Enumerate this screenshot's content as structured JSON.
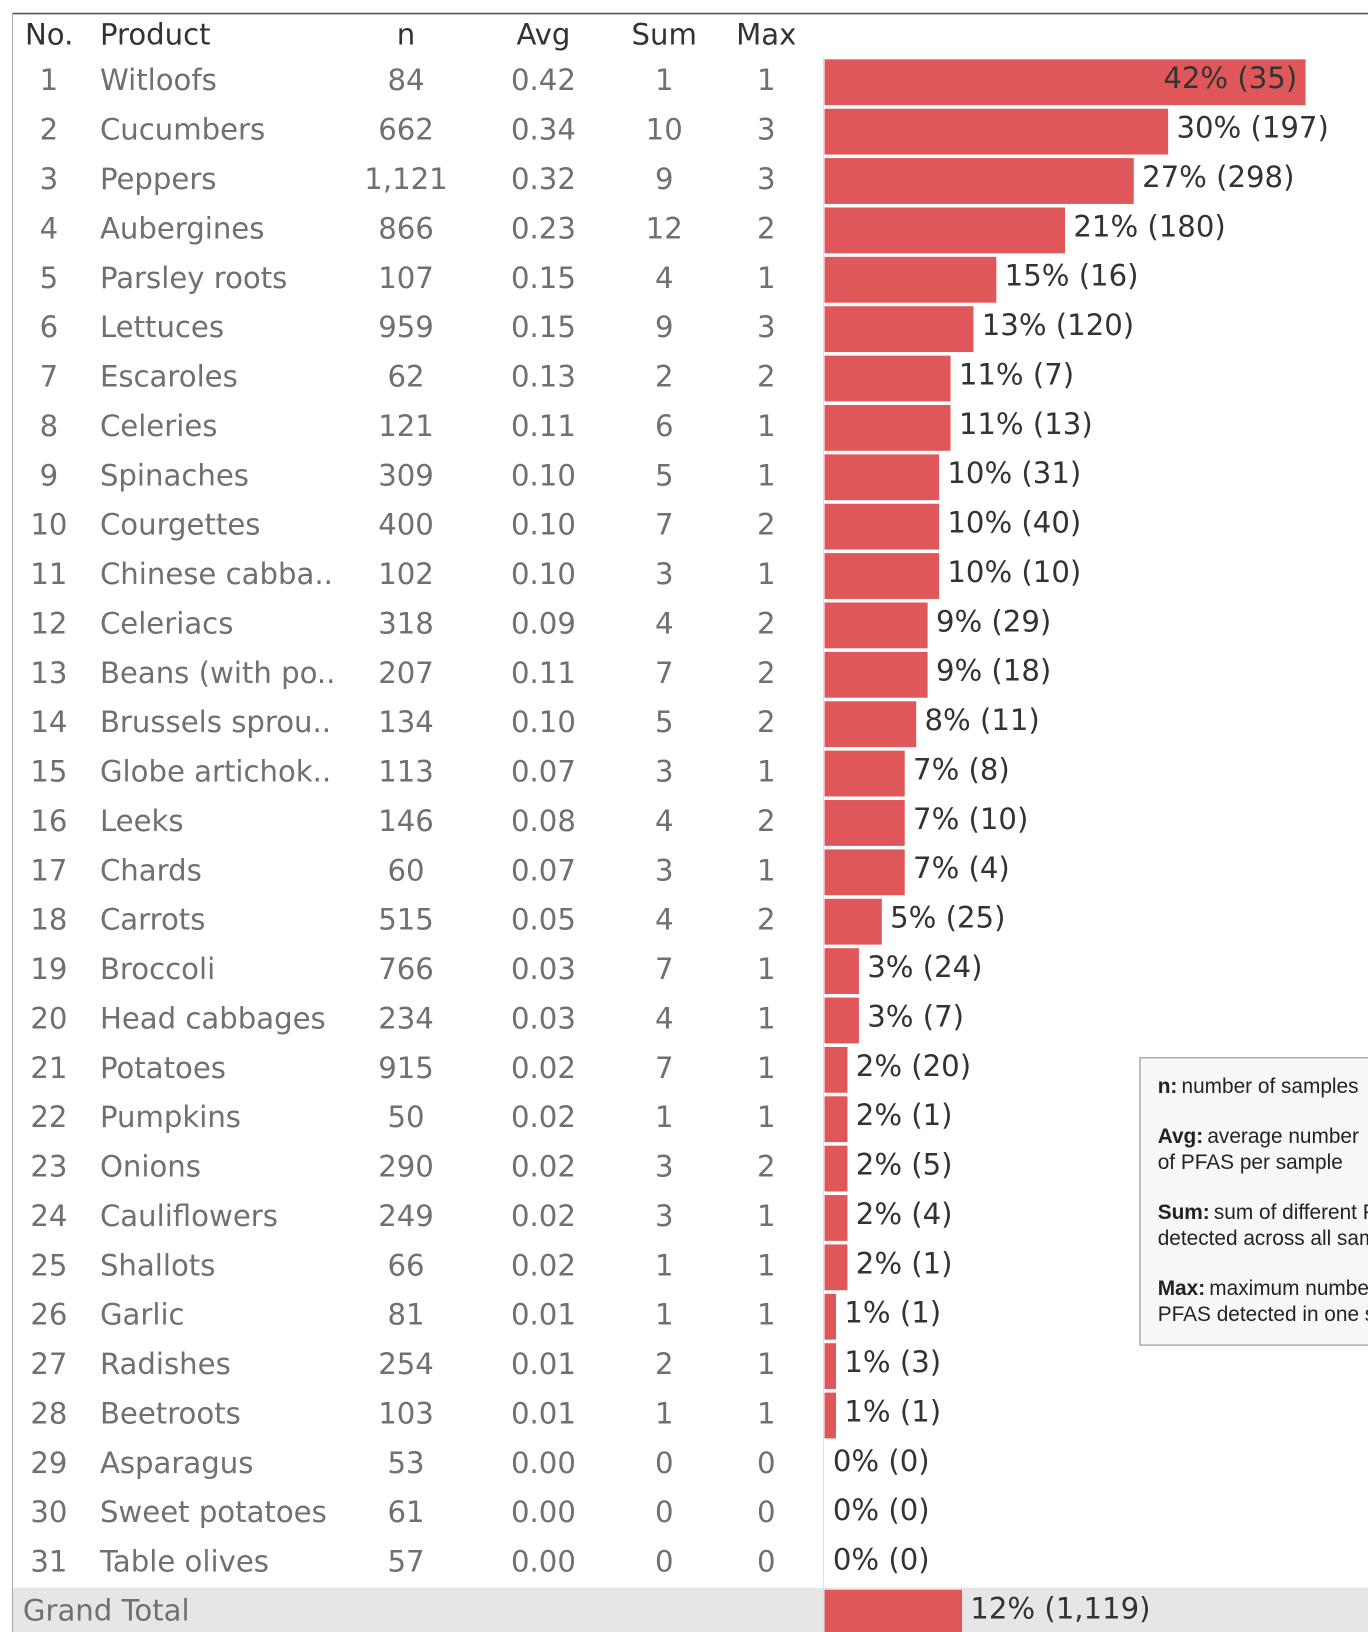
{
  "table": {
    "header": [
      "No.",
      "Product",
      "n",
      "Avg",
      "Sum",
      "Max"
    ],
    "rows": [
      {
        "no": "1",
        "product": "Witloofs",
        "n": "84",
        "avg": "0.42",
        "sum": "1",
        "max": "1",
        "pct": 42,
        "value_label": "42% (35)"
      },
      {
        "no": "2",
        "product": "Cucumbers",
        "n": "662",
        "avg": "0.34",
        "sum": "10",
        "max": "3",
        "pct": 30,
        "value_label": "30% (197)"
      },
      {
        "no": "3",
        "product": "Peppers",
        "n": "1,121",
        "avg": "0.32",
        "sum": "9",
        "max": "3",
        "pct": 27,
        "value_label": "27% (298)"
      },
      {
        "no": "4",
        "product": "Aubergines",
        "n": "866",
        "avg": "0.23",
        "sum": "12",
        "max": "2",
        "pct": 21,
        "value_label": "21% (180)"
      },
      {
        "no": "5",
        "product": "Parsley roots",
        "n": "107",
        "avg": "0.15",
        "sum": "4",
        "max": "1",
        "pct": 15,
        "value_label": "15% (16)"
      },
      {
        "no": "6",
        "product": "Lettuces",
        "n": "959",
        "avg": "0.15",
        "sum": "9",
        "max": "3",
        "pct": 13,
        "value_label": "13% (120)"
      },
      {
        "no": "7",
        "product": "Escaroles",
        "n": "62",
        "avg": "0.13",
        "sum": "2",
        "max": "2",
        "pct": 11,
        "value_label": "11% (7)"
      },
      {
        "no": "8",
        "product": "Celeries",
        "n": "121",
        "avg": "0.11",
        "sum": "6",
        "max": "1",
        "pct": 11,
        "value_label": "11% (13)"
      },
      {
        "no": "9",
        "product": "Spinaches",
        "n": "309",
        "avg": "0.10",
        "sum": "5",
        "max": "1",
        "pct": 10,
        "value_label": "10% (31)"
      },
      {
        "no": "10",
        "product": "Courgettes",
        "n": "400",
        "avg": "0.10",
        "sum": "7",
        "max": "2",
        "pct": 10,
        "value_label": "10% (40)"
      },
      {
        "no": "11",
        "product": "Chinese cabba..",
        "n": "102",
        "avg": "0.10",
        "sum": "3",
        "max": "1",
        "pct": 10,
        "value_label": "10% (10)"
      },
      {
        "no": "12",
        "product": "Celeriacs",
        "n": "318",
        "avg": "0.09",
        "sum": "4",
        "max": "2",
        "pct": 9,
        "value_label": "9% (29)"
      },
      {
        "no": "13",
        "product": "Beans (with po..",
        "n": "207",
        "avg": "0.11",
        "sum": "7",
        "max": "2",
        "pct": 9,
        "value_label": "9% (18)"
      },
      {
        "no": "14",
        "product": "Brussels sprou..",
        "n": "134",
        "avg": "0.10",
        "sum": "5",
        "max": "2",
        "pct": 8,
        "value_label": "8% (11)"
      },
      {
        "no": "15",
        "product": "Globe artichok..",
        "n": "113",
        "avg": "0.07",
        "sum": "3",
        "max": "1",
        "pct": 7,
        "value_label": "7% (8)"
      },
      {
        "no": "16",
        "product": "Leeks",
        "n": "146",
        "avg": "0.08",
        "sum": "4",
        "max": "2",
        "pct": 7,
        "value_label": "7% (10)"
      },
      {
        "no": "17",
        "product": "Chards",
        "n": "60",
        "avg": "0.07",
        "sum": "3",
        "max": "1",
        "pct": 7,
        "value_label": "7% (4)"
      },
      {
        "no": "18",
        "product": "Carrots",
        "n": "515",
        "avg": "0.05",
        "sum": "4",
        "max": "2",
        "pct": 5,
        "value_label": "5% (25)"
      },
      {
        "no": "19",
        "product": "Broccoli",
        "n": "766",
        "avg": "0.03",
        "sum": "7",
        "max": "1",
        "pct": 3,
        "value_label": "3% (24)"
      },
      {
        "no": "20",
        "product": "Head cabbages",
        "n": "234",
        "avg": "0.03",
        "sum": "4",
        "max": "1",
        "pct": 3,
        "value_label": "3% (7)"
      },
      {
        "no": "21",
        "product": "Potatoes",
        "n": "915",
        "avg": "0.02",
        "sum": "7",
        "max": "1",
        "pct": 2,
        "value_label": "2% (20)"
      },
      {
        "no": "22",
        "product": "Pumpkins",
        "n": "50",
        "avg": "0.02",
        "sum": "1",
        "max": "1",
        "pct": 2,
        "value_label": "2% (1)"
      },
      {
        "no": "23",
        "product": "Onions",
        "n": "290",
        "avg": "0.02",
        "sum": "3",
        "max": "2",
        "pct": 2,
        "value_label": "2% (5)"
      },
      {
        "no": "24",
        "product": "Cauliflowers",
        "n": "249",
        "avg": "0.02",
        "sum": "3",
        "max": "1",
        "pct": 2,
        "value_label": "2% (4)"
      },
      {
        "no": "25",
        "product": "Shallots",
        "n": "66",
        "avg": "0.02",
        "sum": "1",
        "max": "1",
        "pct": 2,
        "value_label": "2% (1)"
      },
      {
        "no": "26",
        "product": "Garlic",
        "n": "81",
        "avg": "0.01",
        "sum": "1",
        "max": "1",
        "pct": 1,
        "value_label": "1% (1)"
      },
      {
        "no": "27",
        "product": "Radishes",
        "n": "254",
        "avg": "0.01",
        "sum": "2",
        "max": "1",
        "pct": 1,
        "value_label": "1% (3)"
      },
      {
        "no": "28",
        "product": "Beetroots",
        "n": "103",
        "avg": "0.01",
        "sum": "1",
        "max": "1",
        "pct": 1,
        "value_label": "1% (1)"
      },
      {
        "no": "29",
        "product": "Asparagus",
        "n": "53",
        "avg": "0.00",
        "sum": "0",
        "max": "0",
        "pct": 0,
        "value_label": "0% (0)"
      },
      {
        "no": "30",
        "product": "Sweet potatoes",
        "n": "61",
        "avg": "0.00",
        "sum": "0",
        "max": "0",
        "pct": 0,
        "value_label": "0% (0)"
      },
      {
        "no": "31",
        "product": "Table olives",
        "n": "57",
        "avg": "0.00",
        "sum": "0",
        "max": "0",
        "pct": 0,
        "value_label": "0% (0)"
      }
    ],
    "total": {
      "label": "Grand Total",
      "pct": 12,
      "value_label": "12% (1,119)"
    },
    "bar_color": "#e05759"
  },
  "legend": [
    {
      "key": "n:",
      "lines": [
        "number of samples"
      ]
    },
    {
      "key": "Avg:",
      "lines": [
        "average number",
        "of PFAS per sample"
      ]
    },
    {
      "key": "Sum:",
      "lines": [
        "sum of different PFAS",
        "detected across all samples"
      ]
    },
    {
      "key": "Max:",
      "lines": [
        "maximum number of",
        "PFAS detected in one sample"
      ]
    }
  ]
}
